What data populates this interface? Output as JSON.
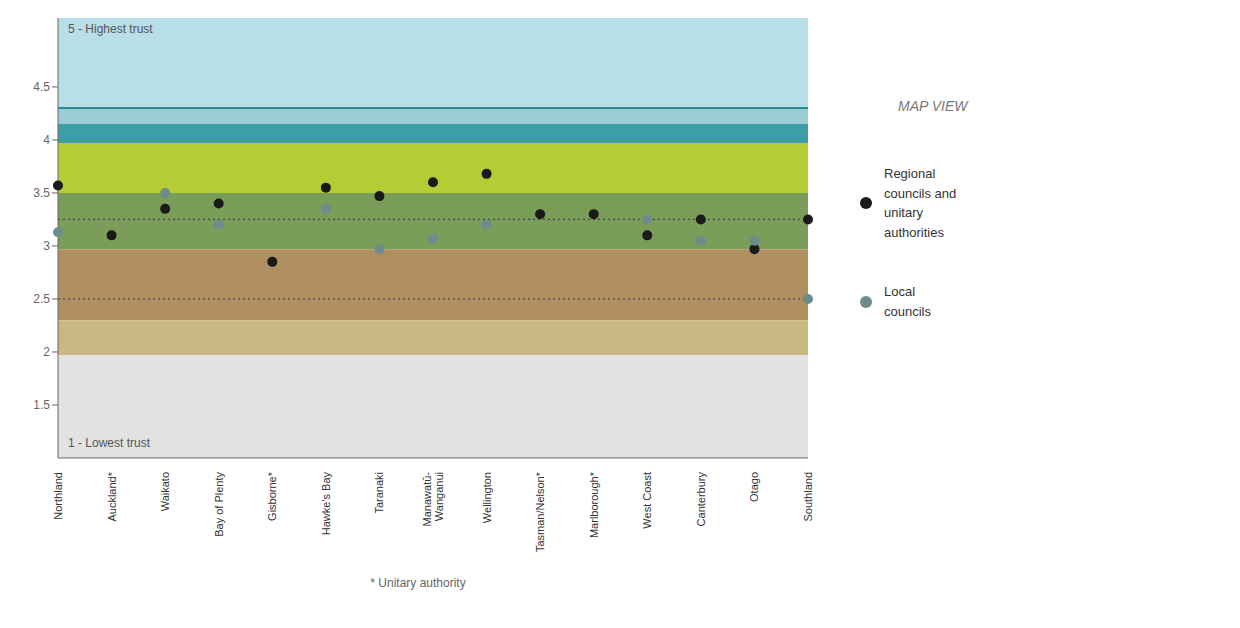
{
  "chart_data": {
    "type": "scatter",
    "categories": [
      "Northland",
      "Auckland*",
      "Waikato",
      "Bay of Plenty",
      "Gisborne*",
      "Hawke's Bay",
      "Taranaki",
      "Manawatū-\nWanganui",
      "Wellington",
      "Tasman/Nelson*",
      "Marlborough*",
      "West Coast",
      "Canterbury",
      "Otago",
      "Southland"
    ],
    "series": [
      {
        "name": "Regional\ncouncils and\nunitary\nauthorities",
        "color": "#1a1a1a",
        "values": [
          3.57,
          3.1,
          3.35,
          3.4,
          2.85,
          3.55,
          3.47,
          3.6,
          3.68,
          3.3,
          3.3,
          3.1,
          3.25,
          2.97,
          3.25
        ]
      },
      {
        "name": "Local\ncouncils",
        "color": "#6e8c8c",
        "values": [
          3.13,
          null,
          3.5,
          3.2,
          null,
          3.35,
          2.97,
          3.07,
          3.2,
          null,
          null,
          3.25,
          3.05,
          3.05,
          2.5
        ]
      }
    ],
    "ylim": [
      1.0,
      5.15
    ],
    "yticks": [
      1.5,
      2.0,
      2.5,
      3.0,
      3.5,
      4.0,
      4.5
    ],
    "grid": false,
    "legend": "right",
    "bands": [
      {
        "range": [
          4.3,
          5.15
        ],
        "color": "#b8dfe8"
      },
      {
        "range": [
          4.15,
          4.3
        ],
        "color": "#9dcdd4"
      },
      {
        "range": [
          3.97,
          4.15
        ],
        "color": "#3d9ea5"
      },
      {
        "range": [
          3.5,
          3.97
        ],
        "color": "#b5cc35"
      },
      {
        "range": [
          2.97,
          3.5
        ],
        "color": "#7a9e5a"
      },
      {
        "range": [
          2.3,
          2.97
        ],
        "color": "#b09060"
      },
      {
        "range": [
          1.97,
          2.3
        ],
        "color": "#c8b882"
      },
      {
        "range": [
          1.0,
          1.97
        ],
        "color": "#e2e2e2"
      }
    ],
    "reference_lines": [
      {
        "y": 4.3,
        "color": "#2a8a90",
        "line_style": "solid"
      },
      {
        "y": 3.25,
        "color": "#444444",
        "line_style": "dotted"
      },
      {
        "y": 2.5,
        "color": "#444444",
        "line_style": "dotted"
      }
    ],
    "ylabel_top": "5 - Highest trust",
    "ylabel_bottom": "1 - Lowest trust",
    "footnote": "* Unitary authority",
    "map_label": "MAP VIEW"
  }
}
